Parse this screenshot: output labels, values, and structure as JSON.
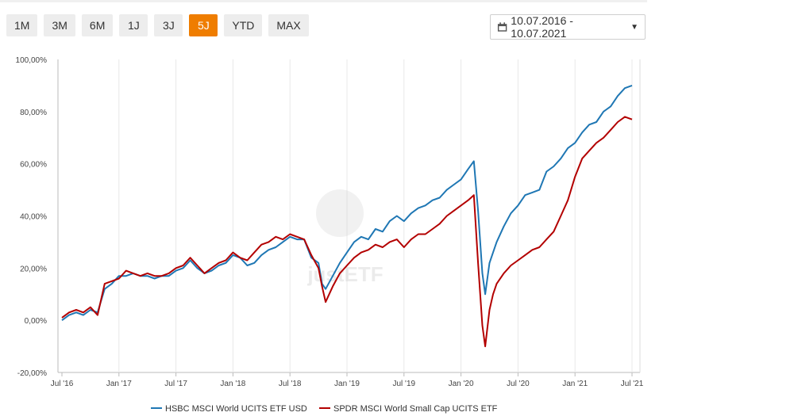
{
  "range_buttons": [
    {
      "label": "1M",
      "active": false
    },
    {
      "label": "3M",
      "active": false
    },
    {
      "label": "6M",
      "active": false
    },
    {
      "label": "1J",
      "active": false
    },
    {
      "label": "3J",
      "active": false
    },
    {
      "label": "5J",
      "active": true
    },
    {
      "label": "YTD",
      "active": false
    },
    {
      "label": "MAX",
      "active": false
    }
  ],
  "date_range": {
    "label": "10.07.2016 - 10.07.2021"
  },
  "watermark": "justETF",
  "colors": {
    "accent": "#ef7d00",
    "series1": "#1f77b4",
    "series2": "#b30000"
  },
  "chart_data": {
    "type": "line",
    "ylim": [
      -20,
      100
    ],
    "y_ticks": [
      "-20,00%",
      "0,00%",
      "20,00%",
      "40,00%",
      "60,00%",
      "80,00%",
      "100,00%"
    ],
    "x_ticks": [
      "Jul '16",
      "Jan '17",
      "Jul '17",
      "Jan '18",
      "Jul '18",
      "Jan '19",
      "Jul '19",
      "Jan '20",
      "Jul '20",
      "Jan '21",
      "Jul '21"
    ],
    "x_unit": "months since Jul 2016",
    "grid": "vertical",
    "legend": "bottom",
    "series": [
      {
        "name": "HSBC MSCI World UCITS ETF USD",
        "points": [
          [
            0,
            0
          ],
          [
            1,
            2
          ],
          [
            2,
            3
          ],
          [
            3,
            2
          ],
          [
            4,
            4
          ],
          [
            5,
            3
          ],
          [
            6,
            12
          ],
          [
            7,
            14
          ],
          [
            8,
            17
          ],
          [
            9,
            17
          ],
          [
            10,
            18
          ],
          [
            11,
            17
          ],
          [
            12,
            17
          ],
          [
            13,
            16
          ],
          [
            14,
            17
          ],
          [
            15,
            17
          ],
          [
            16,
            19
          ],
          [
            17,
            20
          ],
          [
            18,
            23
          ],
          [
            19,
            20
          ],
          [
            20,
            18
          ],
          [
            21,
            19
          ],
          [
            22,
            21
          ],
          [
            23,
            22
          ],
          [
            24,
            25
          ],
          [
            25,
            24
          ],
          [
            26,
            21
          ],
          [
            27,
            22
          ],
          [
            28,
            25
          ],
          [
            29,
            27
          ],
          [
            30,
            28
          ],
          [
            31,
            30
          ],
          [
            32,
            32
          ],
          [
            33,
            31
          ],
          [
            34,
            31
          ],
          [
            35,
            24
          ],
          [
            36,
            22
          ],
          [
            36.5,
            14
          ],
          [
            37,
            12
          ],
          [
            38,
            17
          ],
          [
            39,
            22
          ],
          [
            40,
            26
          ],
          [
            41,
            30
          ],
          [
            42,
            32
          ],
          [
            43,
            31
          ],
          [
            44,
            35
          ],
          [
            45,
            34
          ],
          [
            46,
            38
          ],
          [
            47,
            40
          ],
          [
            48,
            38
          ],
          [
            49,
            41
          ],
          [
            50,
            43
          ],
          [
            51,
            44
          ],
          [
            52,
            46
          ],
          [
            53,
            47
          ],
          [
            54,
            50
          ],
          [
            55,
            52
          ],
          [
            56,
            54
          ],
          [
            57,
            58
          ],
          [
            57.8,
            61
          ],
          [
            58.4,
            42
          ],
          [
            59,
            18
          ],
          [
            59.4,
            10
          ],
          [
            60,
            22
          ],
          [
            60.5,
            26
          ],
          [
            61,
            30
          ],
          [
            62,
            36
          ],
          [
            63,
            41
          ],
          [
            64,
            44
          ],
          [
            65,
            48
          ],
          [
            66,
            49
          ],
          [
            67,
            50
          ],
          [
            68,
            57
          ],
          [
            69,
            59
          ],
          [
            70,
            62
          ],
          [
            71,
            66
          ],
          [
            72,
            68
          ],
          [
            73,
            72
          ],
          [
            74,
            75
          ],
          [
            75,
            76
          ],
          [
            76,
            80
          ],
          [
            77,
            82
          ],
          [
            78,
            86
          ],
          [
            79,
            89
          ],
          [
            80,
            90
          ]
        ]
      },
      {
        "name": "SPDR MSCI World Small Cap UCITS ETF",
        "points": [
          [
            0,
            1
          ],
          [
            1,
            3
          ],
          [
            2,
            4
          ],
          [
            3,
            3
          ],
          [
            4,
            5
          ],
          [
            5,
            2
          ],
          [
            6,
            14
          ],
          [
            7,
            15
          ],
          [
            8,
            16
          ],
          [
            9,
            19
          ],
          [
            10,
            18
          ],
          [
            11,
            17
          ],
          [
            12,
            18
          ],
          [
            13,
            17
          ],
          [
            14,
            17
          ],
          [
            15,
            18
          ],
          [
            16,
            20
          ],
          [
            17,
            21
          ],
          [
            18,
            24
          ],
          [
            19,
            21
          ],
          [
            20,
            18
          ],
          [
            21,
            20
          ],
          [
            22,
            22
          ],
          [
            23,
            23
          ],
          [
            24,
            26
          ],
          [
            25,
            24
          ],
          [
            26,
            23
          ],
          [
            27,
            26
          ],
          [
            28,
            29
          ],
          [
            29,
            30
          ],
          [
            30,
            32
          ],
          [
            31,
            31
          ],
          [
            32,
            33
          ],
          [
            33,
            32
          ],
          [
            34,
            31
          ],
          [
            35,
            25
          ],
          [
            36,
            20
          ],
          [
            36.5,
            13
          ],
          [
            37,
            7
          ],
          [
            38,
            13
          ],
          [
            39,
            18
          ],
          [
            40,
            21
          ],
          [
            41,
            24
          ],
          [
            42,
            26
          ],
          [
            43,
            27
          ],
          [
            44,
            29
          ],
          [
            45,
            28
          ],
          [
            46,
            30
          ],
          [
            47,
            31
          ],
          [
            48,
            28
          ],
          [
            49,
            31
          ],
          [
            50,
            33
          ],
          [
            51,
            33
          ],
          [
            52,
            35
          ],
          [
            53,
            37
          ],
          [
            54,
            40
          ],
          [
            55,
            42
          ],
          [
            56,
            44
          ],
          [
            57,
            46
          ],
          [
            57.8,
            48
          ],
          [
            58.4,
            22
          ],
          [
            59,
            -2
          ],
          [
            59.4,
            -10
          ],
          [
            60,
            4
          ],
          [
            60.5,
            10
          ],
          [
            61,
            14
          ],
          [
            62,
            18
          ],
          [
            63,
            21
          ],
          [
            64,
            23
          ],
          [
            65,
            25
          ],
          [
            66,
            27
          ],
          [
            67,
            28
          ],
          [
            68,
            31
          ],
          [
            69,
            34
          ],
          [
            70,
            40
          ],
          [
            71,
            46
          ],
          [
            72,
            55
          ],
          [
            73,
            62
          ],
          [
            74,
            65
          ],
          [
            75,
            68
          ],
          [
            76,
            70
          ],
          [
            77,
            73
          ],
          [
            78,
            76
          ],
          [
            79,
            78
          ],
          [
            80,
            77
          ]
        ]
      }
    ]
  }
}
